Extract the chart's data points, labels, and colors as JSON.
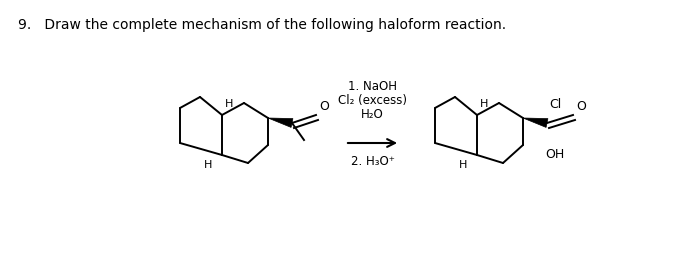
{
  "title_text": "9.   Draw the complete mechanism of the following haloform reaction.",
  "title_fontsize": 10,
  "bg_color": "#ffffff",
  "reagent_line1": "1. NaOH",
  "reagent_line2": "Cl₂ (excess)",
  "reagent_line3": "H₂O",
  "reagent_line4": "2. H₃O⁺",
  "fig_width": 7.0,
  "fig_height": 2.74,
  "dpi": 100
}
